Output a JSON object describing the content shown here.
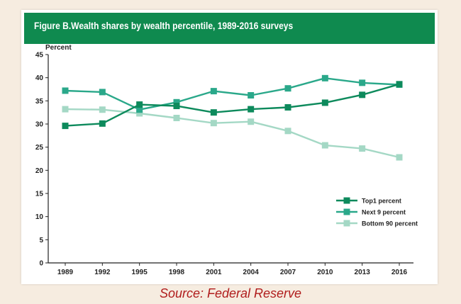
{
  "chart_data": {
    "type": "line",
    "title": "Figure B.Wealth shares by wealth percentile, 1989-2016 surveys",
    "ylabel": "Percent",
    "xlabel": "",
    "ylim": [
      0,
      45
    ],
    "yticks": [
      0,
      5,
      10,
      15,
      20,
      25,
      30,
      35,
      40,
      45
    ],
    "categories": [
      "1989",
      "1992",
      "1995",
      "1998",
      "2001",
      "2004",
      "2007",
      "2010",
      "2013",
      "2016"
    ],
    "series": [
      {
        "name": "Top1 percent",
        "color": "#0d8a5c",
        "values": [
          29.6,
          30.1,
          34.2,
          33.9,
          32.5,
          33.2,
          33.6,
          34.6,
          36.3,
          38.6
        ]
      },
      {
        "name": "Next 9 percent",
        "color": "#2aa88a",
        "values": [
          37.2,
          36.9,
          33.1,
          34.7,
          37.1,
          36.2,
          37.7,
          39.9,
          38.9,
          38.5
        ]
      },
      {
        "name": "Bottom 90 percent",
        "color": "#a4d8c5",
        "values": [
          33.2,
          33.1,
          32.3,
          31.3,
          30.2,
          30.5,
          28.5,
          25.4,
          24.7,
          22.8
        ]
      }
    ],
    "legend_position": "right"
  },
  "source": "Source: Federal Reserve"
}
